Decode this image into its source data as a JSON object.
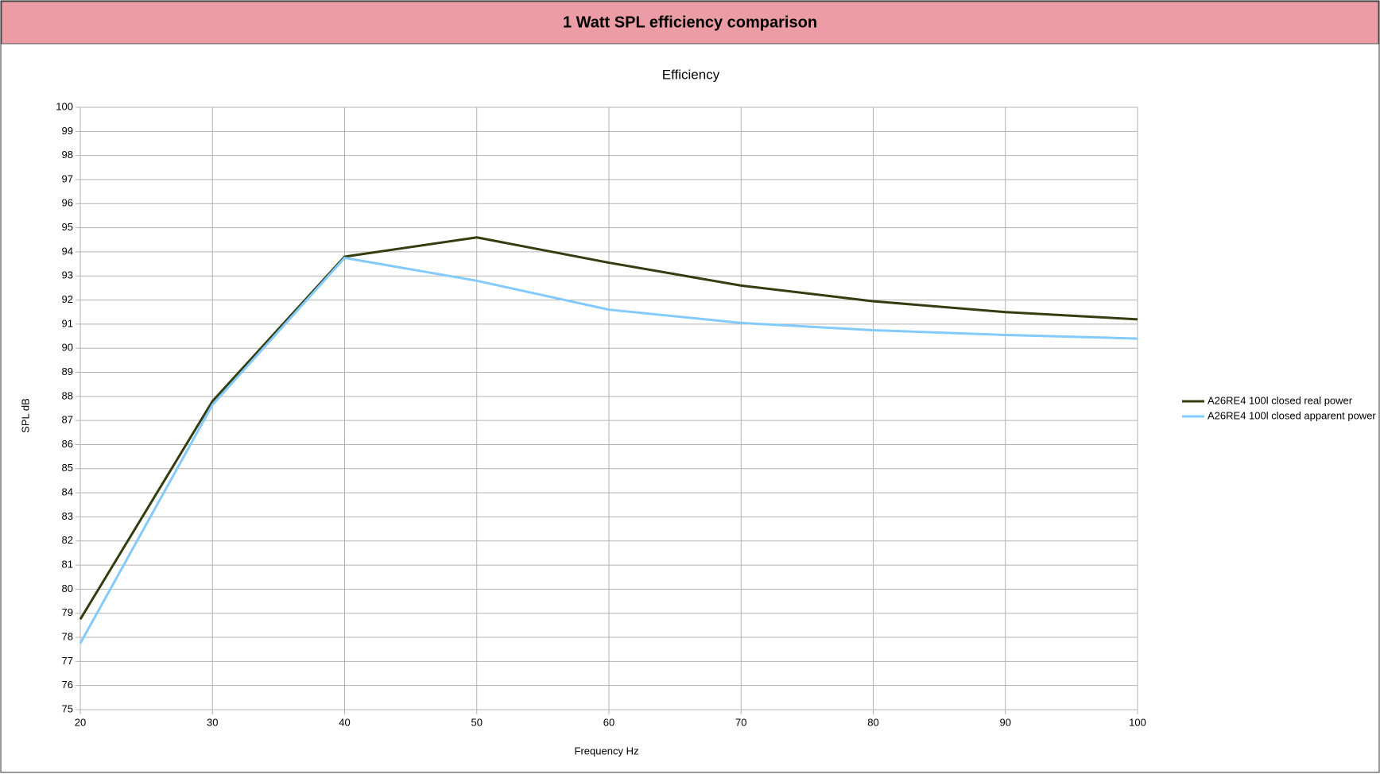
{
  "header": {
    "title": "1 Watt SPL efficiency comparison"
  },
  "chart_data": {
    "type": "line",
    "title": "Efficiency",
    "x_label": "Frequency Hz",
    "y_label": "SPL dB",
    "x": [
      20,
      30,
      40,
      50,
      60,
      70,
      80,
      90,
      100
    ],
    "series": [
      {
        "name": "A26RE4 100l closed real power",
        "color": "#333d0f",
        "values": [
          78.75,
          87.8,
          93.8,
          94.6,
          93.55,
          92.6,
          91.95,
          91.5,
          91.2
        ]
      },
      {
        "name": "A26RE4 100l closed apparent power",
        "color": "#83caff",
        "values": [
          77.75,
          87.65,
          93.75,
          92.8,
          91.6,
          91.05,
          90.75,
          90.55,
          90.4
        ]
      }
    ],
    "xlim": [
      20,
      100
    ],
    "xticks": [
      20,
      30,
      40,
      50,
      60,
      70,
      80,
      90,
      100
    ],
    "ylim": [
      75,
      100
    ],
    "yticks": [
      75,
      76,
      77,
      78,
      79,
      80,
      81,
      82,
      83,
      84,
      85,
      86,
      87,
      88,
      89,
      90,
      91,
      92,
      93,
      94,
      95,
      96,
      97,
      98,
      99,
      100
    ],
    "grid": true,
    "legend": "right"
  }
}
